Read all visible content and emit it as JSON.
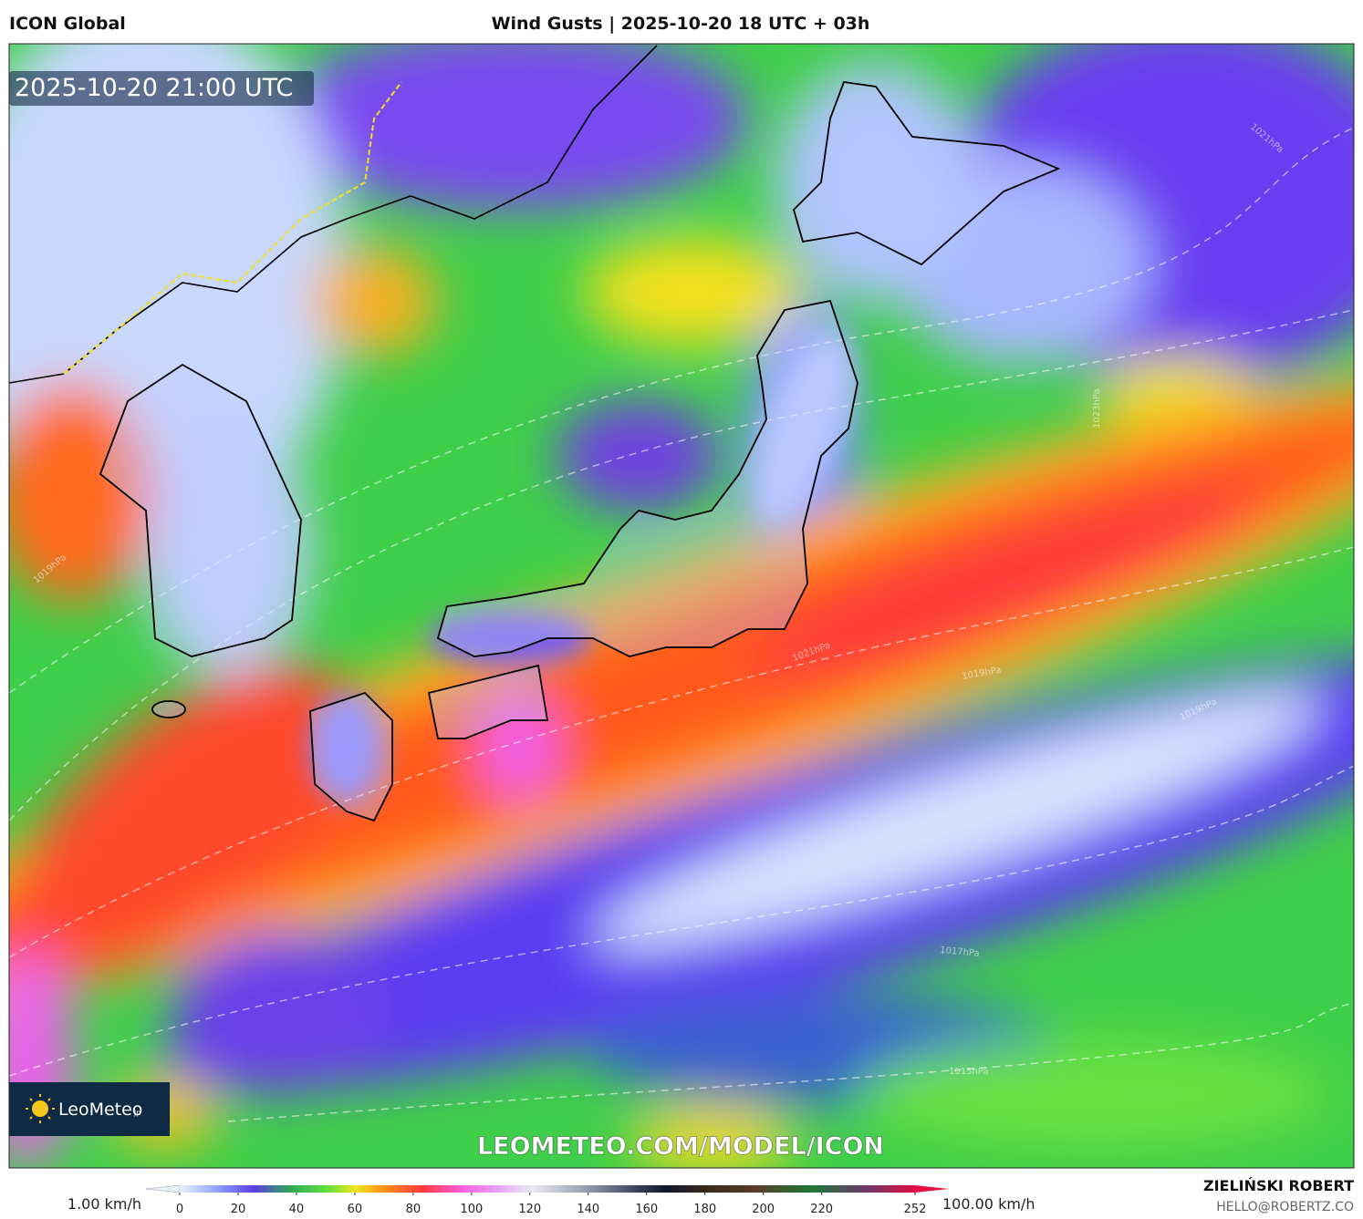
{
  "header": {
    "model": "ICON Global",
    "title": "Wind Gusts | 2025-10-20 18 UTC + 03h"
  },
  "map": {
    "valid_time": "2025-10-20 21:00 UTC",
    "watermark": "LEOMETEO.COM/MODEL/ICON",
    "isobar_labels": [
      "1019hPa",
      "1021hPa",
      "1023hPa",
      "1021hPa",
      "1019hPa",
      "1019hPa",
      "1017hPa",
      "1015hPa"
    ]
  },
  "logo": {
    "name": "LeoMeteo",
    "suffix": "jp"
  },
  "colorbar": {
    "min_label": "1.00 km/h",
    "max_label": "100.00 km/h",
    "lim": [
      0,
      252
    ],
    "ticks": [
      0,
      20,
      40,
      60,
      80,
      100,
      120,
      140,
      160,
      180,
      200,
      220,
      252
    ]
  },
  "credits": {
    "author": "ZIELIŃSKI ROBERT",
    "email": "HELLO@ROBERTZ.CO"
  }
}
